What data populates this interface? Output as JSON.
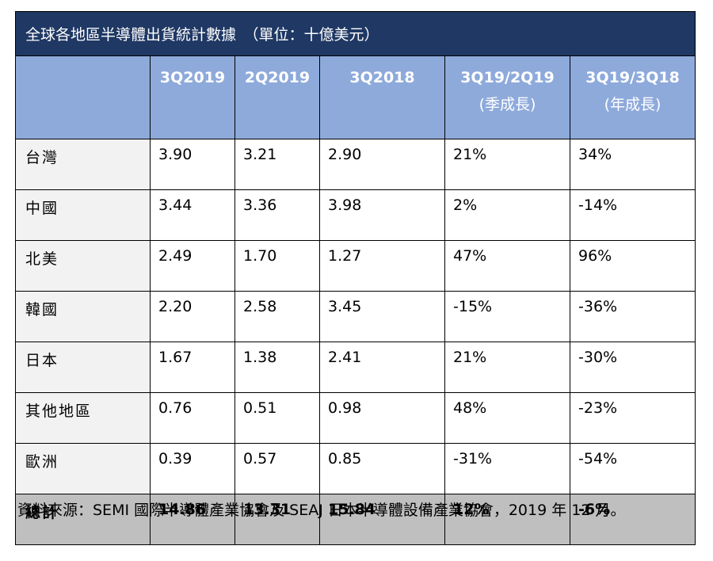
{
  "table": {
    "title": "全球各地區半導體出貨統計數據　（單位：十億美元）",
    "headers": [
      {
        "label": "",
        "sub": ""
      },
      {
        "label": "3Q2019",
        "sub": ""
      },
      {
        "label": "2Q2019",
        "sub": ""
      },
      {
        "label": "3Q2018",
        "sub": ""
      },
      {
        "label": "3Q19/2Q19",
        "sub": "(季成長)"
      },
      {
        "label": "3Q19/3Q18",
        "sub": "(年成長)"
      }
    ],
    "rows": [
      {
        "region": "台灣",
        "v": [
          "3.90",
          "3.21",
          "2.90",
          "21%",
          "34%"
        ]
      },
      {
        "region": "中國",
        "v": [
          "3.44",
          "3.36",
          "3.98",
          "2%",
          "-14%"
        ]
      },
      {
        "region": "北美",
        "v": [
          "2.49",
          "1.70",
          "1.27",
          "47%",
          "96%"
        ]
      },
      {
        "region": "韓國",
        "v": [
          "2.20",
          "2.58",
          "3.45",
          "-15%",
          "-36%"
        ]
      },
      {
        "region": "日本",
        "v": [
          "1.67",
          "1.38",
          "2.41",
          "21%",
          "-30%"
        ]
      },
      {
        "region": "其他地區",
        "v": [
          "0.76",
          "0.51",
          "0.98",
          "48%",
          "-23%"
        ]
      },
      {
        "region": "歐洲",
        "v": [
          "0.39",
          "0.57",
          "0.85",
          "-31%",
          "-54%"
        ]
      }
    ],
    "total": {
      "region": "總計",
      "v": [
        "14.86",
        "13.31",
        "15.84",
        "12%",
        "-6%"
      ]
    },
    "colors": {
      "title_bg": "#1f3864",
      "header_bg": "#8eaadb",
      "region_bg": "#f2f2f2",
      "total_bg": "#bfbfbf"
    }
  },
  "source": "資料來源：SEMI 國際半導體產業協會及 SEAJ 日本半導體設備產業協會，2019 年 12 月。"
}
